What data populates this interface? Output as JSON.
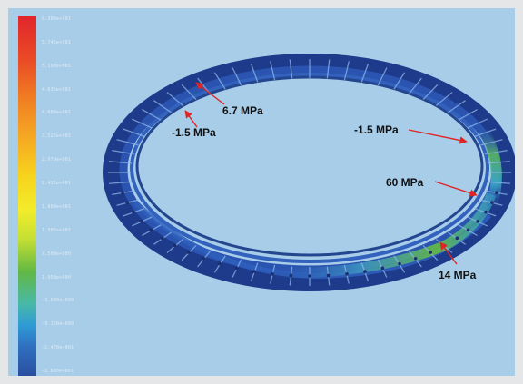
{
  "legend": {
    "ticks": [
      "6.300e+001",
      "5.745e+001",
      "5.190e+001",
      "4.635e+001",
      "4.080e+001",
      "3.525e+001",
      "2.970e+001",
      "2.415e+001",
      "1.860e+001",
      "1.305e+001",
      "7.500e+000",
      "1.950e+000",
      "-3.600e+000",
      "-9.150e+000",
      "-1.470e+001",
      "-1.600e+001"
    ]
  },
  "callouts": {
    "top_center": "6.7 MPa",
    "top_left": "-1.5 MPa",
    "right_upper": "-1.5 MPa",
    "right_middle": "60 MPa",
    "right_lower": "14 MPa"
  },
  "colors": {
    "background": "#a8cde9",
    "ring_dark": "#1f3c8c",
    "ring_mid": "#2b56b3",
    "ring_green": "#5bb546",
    "ring_cyan": "#3fb7c9",
    "arrow": "#e02424"
  }
}
